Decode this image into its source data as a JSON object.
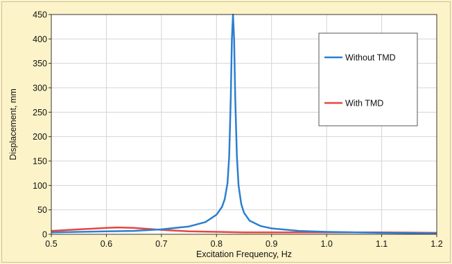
{
  "chart_data": {
    "type": "line",
    "title": "",
    "xlabel": "Excitation Frequency, Hz",
    "ylabel": "Displacement, mm",
    "xlim": [
      0.5,
      1.2
    ],
    "ylim": [
      0,
      450
    ],
    "xticks": [
      "0.5",
      "0.6",
      "0.7",
      "0.8",
      "0.9",
      "1.0",
      "1.1",
      "1.2"
    ],
    "yticks": [
      "0",
      "50",
      "100",
      "150",
      "200",
      "250",
      "300",
      "350",
      "400",
      "450"
    ],
    "grid": true,
    "legend_position": "top-right",
    "series": [
      {
        "name": "Without TMD",
        "color": "#2b7fcf",
        "x": [
          0.5,
          0.55,
          0.6,
          0.65,
          0.7,
          0.75,
          0.78,
          0.8,
          0.81,
          0.815,
          0.82,
          0.823,
          0.826,
          0.828,
          0.83,
          0.832,
          0.834,
          0.837,
          0.84,
          0.845,
          0.85,
          0.86,
          0.88,
          0.9,
          0.95,
          1.0,
          1.05,
          1.1,
          1.15,
          1.2
        ],
        "y": [
          4,
          5,
          6,
          7,
          10,
          16,
          25,
          40,
          56,
          72,
          105,
          160,
          280,
          400,
          450,
          400,
          280,
          160,
          100,
          62,
          44,
          28,
          17,
          12,
          7,
          5,
          4,
          3,
          2.5,
          2
        ]
      },
      {
        "name": "With TMD",
        "color": "#e8453c",
        "x": [
          0.5,
          0.55,
          0.6,
          0.62,
          0.65,
          0.7,
          0.75,
          0.8,
          0.85,
          0.9,
          0.95,
          1.0,
          1.05,
          1.1,
          1.15,
          1.2
        ],
        "y": [
          7,
          10,
          13,
          14,
          13,
          9,
          6,
          5,
          4,
          4,
          4,
          4,
          4,
          4,
          3.5,
          3
        ]
      }
    ]
  }
}
